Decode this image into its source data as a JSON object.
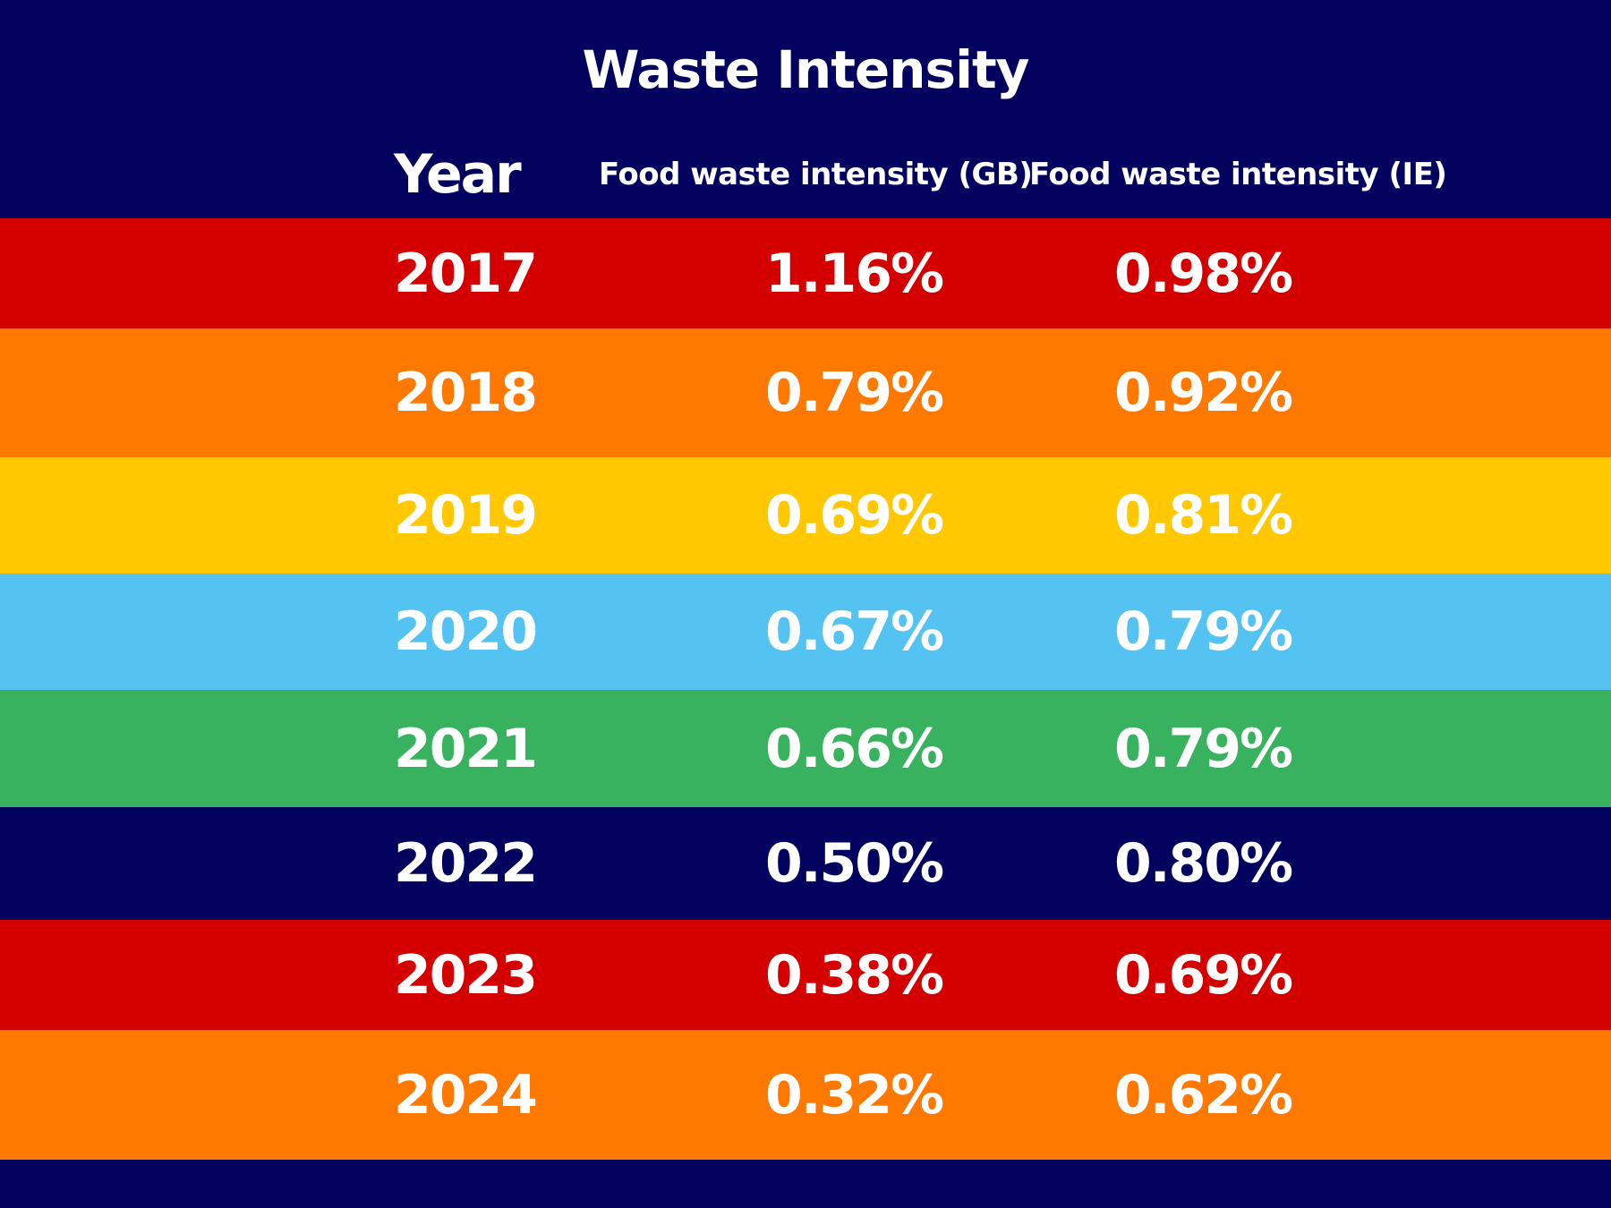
{
  "chart_data": {
    "type": "table",
    "title": "Waste Intensity",
    "columns": [
      "Year",
      "Food waste intensity (GB)",
      "Food waste intensity (IE)"
    ],
    "rows": [
      {
        "year": "2017",
        "gb": "1.16%",
        "ie": "0.98%",
        "color": "#d40000"
      },
      {
        "year": "2018",
        "gb": "0.79%",
        "ie": "0.92%",
        "color": "#ff7800"
      },
      {
        "year": "2019",
        "gb": "0.69%",
        "ie": "0.81%",
        "color": "#ffc800"
      },
      {
        "year": "2020",
        "gb": "0.67%",
        "ie": "0.79%",
        "color": "#55c3f2"
      },
      {
        "year": "2021",
        "gb": "0.66%",
        "ie": "0.79%",
        "color": "#38b25e"
      },
      {
        "year": "2022",
        "gb": "0.50%",
        "ie": "0.80%",
        "color": "#03035f"
      },
      {
        "year": "2023",
        "gb": "0.38%",
        "ie": "0.69%",
        "color": "#d40000"
      },
      {
        "year": "2024",
        "gb": "0.32%",
        "ie": "0.62%",
        "color": "#ff7800"
      }
    ]
  },
  "colors": {
    "background": "#03035f",
    "text": "#ffffff"
  }
}
